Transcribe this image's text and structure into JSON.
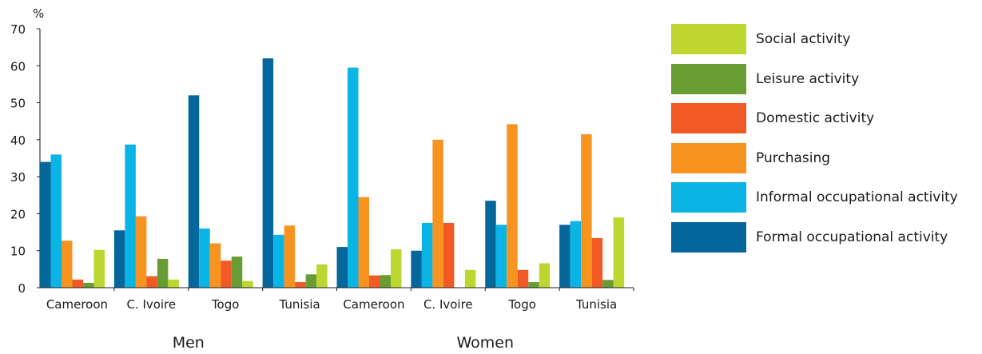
{
  "chart_data": {
    "type": "bar",
    "ylabel": "%",
    "ylim": [
      0,
      70
    ],
    "yticks": [
      0,
      10,
      20,
      30,
      40,
      50,
      60,
      70
    ],
    "categories": [
      "Cameroon",
      "C. Ivoire",
      "Togo",
      "Tunisia",
      "Cameroon",
      "C. Ivoire",
      "Togo",
      "Tunisia"
    ],
    "groups": [
      {
        "label": "Men",
        "categories": [
          0,
          1,
          2,
          3
        ]
      },
      {
        "label": "Women",
        "categories": [
          4,
          5,
          6,
          7
        ]
      }
    ],
    "legend_placement": "right",
    "grid": false,
    "series": [
      {
        "name": "Formal occupational activity",
        "color": "#04679c",
        "values": [
          34,
          15.5,
          52,
          62,
          11,
          10,
          23.5,
          17
        ]
      },
      {
        "name": "Informal occupational activity",
        "color": "#0ab4e4",
        "values": [
          36,
          38.7,
          16,
          14.3,
          59.5,
          17.5,
          17,
          18
        ]
      },
      {
        "name": "Purchasing",
        "color": "#f79420",
        "values": [
          12.7,
          19.3,
          12,
          16.8,
          24.5,
          40,
          44.2,
          41.5
        ]
      },
      {
        "name": "Domestic activity",
        "color": "#f15a24",
        "values": [
          2.2,
          3.1,
          7.3,
          1.5,
          3.3,
          17.5,
          4.8,
          13.4
        ]
      },
      {
        "name": "Leisure activity",
        "color": "#689d34",
        "values": [
          1.3,
          7.8,
          8.4,
          3.6,
          3.4,
          0,
          1.5,
          2.1
        ]
      },
      {
        "name": "Social activity",
        "color": "#bed630",
        "values": [
          10.2,
          2.2,
          1.8,
          6.3,
          10.4,
          4.8,
          6.6,
          19
        ]
      }
    ]
  }
}
